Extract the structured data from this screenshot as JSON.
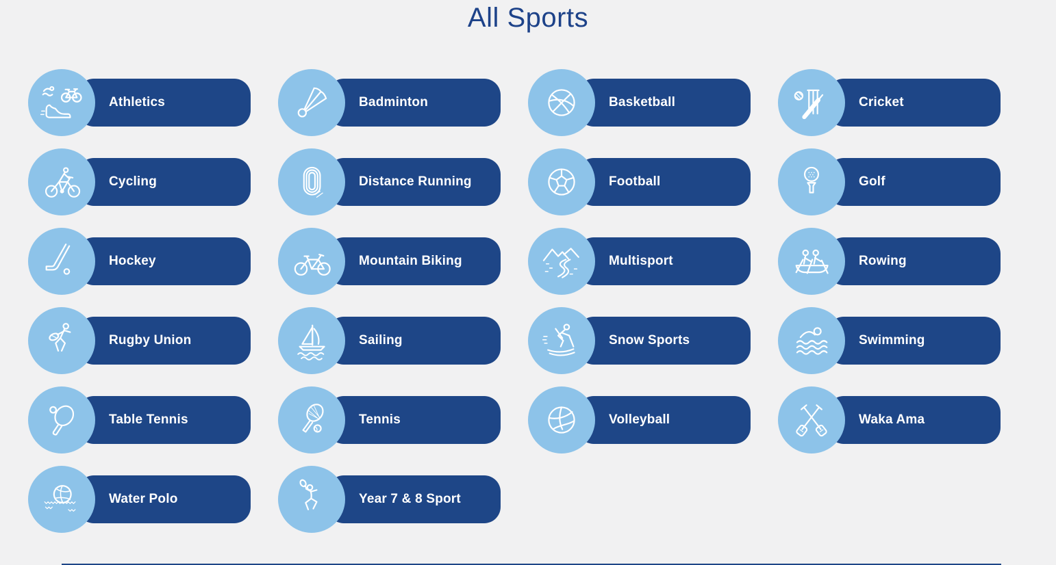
{
  "title": "All Sports",
  "colors": {
    "background": "#f1f1f2",
    "pill": "#1e4687",
    "circle": "#8dc3e9",
    "title_text": "#1d4289",
    "label_text": "#ffffff"
  },
  "sports": [
    {
      "label": "Athletics",
      "icon": "athletics-icon"
    },
    {
      "label": "Badminton",
      "icon": "badminton-icon"
    },
    {
      "label": "Basketball",
      "icon": "basketball-icon"
    },
    {
      "label": "Cricket",
      "icon": "cricket-icon"
    },
    {
      "label": "Cycling",
      "icon": "cycling-icon"
    },
    {
      "label": "Distance Running",
      "icon": "running-track-icon"
    },
    {
      "label": "Football",
      "icon": "football-icon"
    },
    {
      "label": "Golf",
      "icon": "golf-icon"
    },
    {
      "label": "Hockey",
      "icon": "hockey-icon"
    },
    {
      "label": "Mountain Biking",
      "icon": "mountain-bike-icon"
    },
    {
      "label": "Multisport",
      "icon": "multisport-icon"
    },
    {
      "label": "Rowing",
      "icon": "rowing-icon"
    },
    {
      "label": "Rugby Union",
      "icon": "rugby-icon"
    },
    {
      "label": "Sailing",
      "icon": "sailing-icon"
    },
    {
      "label": "Snow Sports",
      "icon": "snow-sports-icon"
    },
    {
      "label": "Swimming",
      "icon": "swimming-icon"
    },
    {
      "label": "Table Tennis",
      "icon": "table-tennis-icon"
    },
    {
      "label": "Tennis",
      "icon": "tennis-icon"
    },
    {
      "label": "Volleyball",
      "icon": "volleyball-icon"
    },
    {
      "label": "Waka Ama",
      "icon": "waka-ama-icon"
    },
    {
      "label": "Water Polo",
      "icon": "water-polo-icon"
    },
    {
      "label": "Year 7 & 8 Sport",
      "icon": "year-7-8-sport-icon"
    }
  ]
}
